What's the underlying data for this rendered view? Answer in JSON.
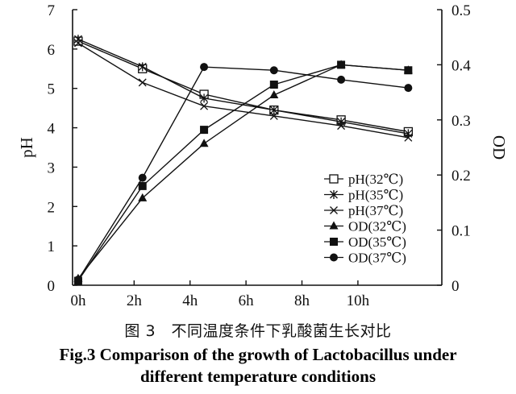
{
  "chart_data": {
    "type": "line",
    "title": "",
    "categories": [
      "0h",
      "2h",
      "4h",
      "6h",
      "8h",
      "10h"
    ],
    "x_range": [
      -0.2,
      13
    ],
    "left_axis": {
      "label": "pH",
      "min": 0,
      "max": 7,
      "ticks": [
        0,
        1,
        2,
        3,
        4,
        5,
        6,
        7
      ]
    },
    "right_axis": {
      "label": "OD",
      "min": 0,
      "max": 0.5,
      "ticks": [
        "0",
        "0.1",
        "0.2",
        "0.3",
        "0.4",
        "0.5"
      ],
      "tick_values": [
        0,
        0.1,
        0.2,
        0.3,
        0.4,
        0.5
      ]
    },
    "series": [
      {
        "name": "pH(32℃)",
        "axis": "left",
        "marker": "open-square",
        "x": [
          0,
          2.3,
          4.5,
          7,
          9.4,
          11.8
        ],
        "values": [
          6.2,
          5.5,
          4.85,
          4.45,
          4.2,
          3.9
        ]
      },
      {
        "name": "pH(35℃)",
        "axis": "left",
        "marker": "asterisk",
        "x": [
          0,
          2.3,
          4.5,
          7,
          9.4,
          11.8
        ],
        "values": [
          6.25,
          5.55,
          4.75,
          4.45,
          4.15,
          3.85
        ]
      },
      {
        "name": "pH(37℃)",
        "axis": "left",
        "marker": "x",
        "x": [
          0,
          2.3,
          4.5,
          7,
          9.4,
          11.8
        ],
        "values": [
          6.15,
          5.15,
          4.55,
          4.3,
          4.05,
          3.75
        ]
      },
      {
        "name": "OD(32℃)",
        "axis": "right",
        "marker": "filled-triangle",
        "x": [
          0,
          2.3,
          4.5,
          7,
          9.4,
          11.8
        ],
        "values": [
          0.012,
          0.158,
          0.257,
          0.345,
          0.4,
          0.39
        ]
      },
      {
        "name": "OD(35℃)",
        "axis": "right",
        "marker": "filled-square",
        "x": [
          0,
          2.3,
          4.5,
          7,
          9.4,
          11.8
        ],
        "values": [
          0.008,
          0.18,
          0.282,
          0.364,
          0.4,
          0.39
        ]
      },
      {
        "name": "OD(37℃)",
        "axis": "right",
        "marker": "filled-circle",
        "x": [
          0,
          2.3,
          4.5,
          7,
          9.4,
          11.8
        ],
        "values": [
          0.01,
          0.195,
          0.396,
          0.39,
          0.373,
          0.358
        ]
      }
    ],
    "legend_position": "lower-right"
  },
  "captions": {
    "chinese": "图 3　不同温度条件下乳酸菌生长对比",
    "english_line1": "Fig.3 Comparison of the growth of Lactobacillus under",
    "english_line2": "different temperature conditions"
  }
}
